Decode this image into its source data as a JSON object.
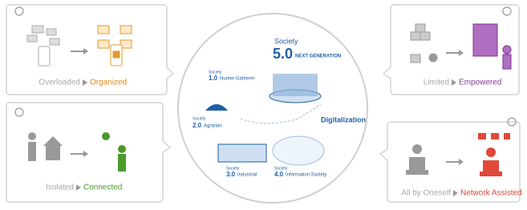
{
  "panels": [
    {
      "from": "Overloaded",
      "to": "Organized"
    },
    {
      "from": "Limited",
      "to": "Empowered"
    },
    {
      "from": "Isolated",
      "to": "Connected"
    },
    {
      "from": "All by Oneself",
      "to": "Network Assisted"
    }
  ],
  "center": {
    "title_small": "Society",
    "title_big": "5.0",
    "title_sub": "NEXT GENERATION",
    "stages": [
      {
        "label": "Society",
        "number": "1.0",
        "name": "Hunter-Gatherer"
      },
      {
        "label": "Society",
        "number": "2.0",
        "name": "Agrarian"
      },
      {
        "label": "Society",
        "number": "3.0",
        "name": "Industrial"
      },
      {
        "label": "Society",
        "number": "4.0",
        "name": "Information Society"
      }
    ],
    "arrow_label": "Digitalization"
  }
}
